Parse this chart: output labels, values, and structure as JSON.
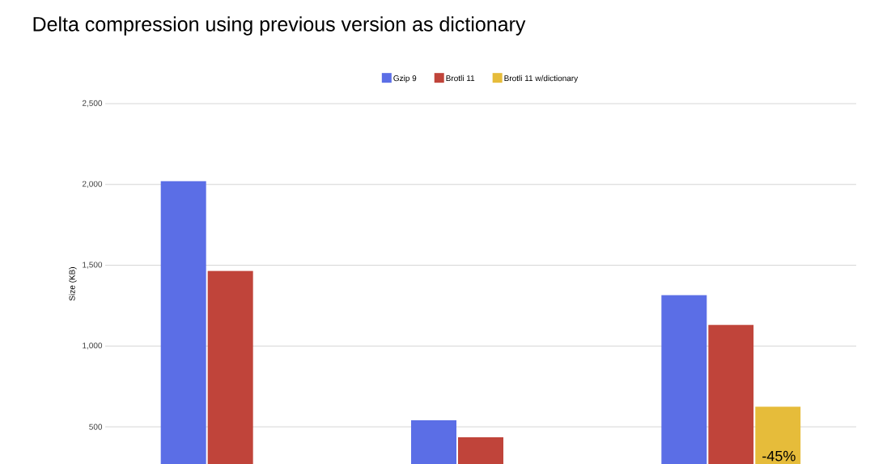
{
  "chart_data": {
    "type": "bar",
    "title": "Delta compression using previous version as dictionary",
    "ylabel": "Size (KB)",
    "categories": [
      null,
      null,
      null
    ],
    "series": [
      {
        "name": "Gzip 9",
        "color": "#5b6ee6",
        "values": [
          2020,
          540,
          1315
        ]
      },
      {
        "name": "Brotli 11",
        "color": "#c0443a",
        "values": [
          1465,
          435,
          1130
        ]
      },
      {
        "name": "Brotli 11 w/dictionary",
        "color": "#e6bc3a",
        "values": [
          null,
          null,
          625
        ]
      }
    ],
    "ylim": [
      270,
      2500
    ],
    "yticks": [
      500,
      {
        "value": 1000,
        "label": "1,000"
      },
      {
        "value": 1500,
        "label": "1,500"
      },
      {
        "value": 2000,
        "label": "2,000"
      },
      {
        "value": 2500,
        "label": "2,500"
      }
    ],
    "grid": "y",
    "legend": "top",
    "annotations": [
      "-45%"
    ]
  }
}
